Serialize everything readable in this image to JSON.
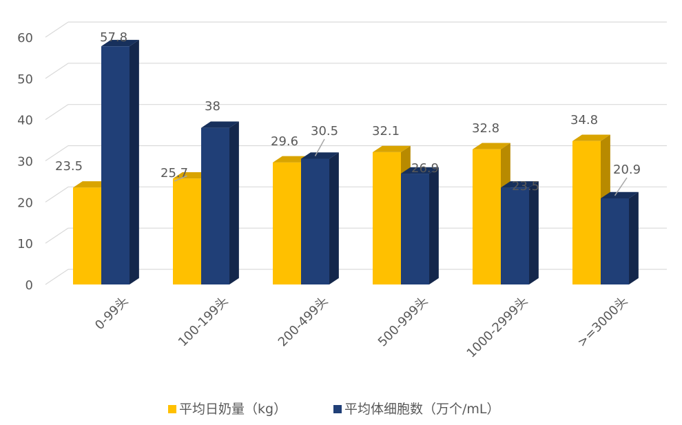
{
  "chart_data": {
    "type": "bar",
    "title": "",
    "xlabel": "",
    "ylabel": "",
    "ylim": [
      0,
      60
    ],
    "yticks": [
      0,
      10,
      20,
      30,
      40,
      50,
      60
    ],
    "categories": [
      "0-99头",
      "100-199头",
      "200-499头",
      "500-999头",
      "1000-2999头",
      ">=3000头"
    ],
    "series": [
      {
        "name": "平均日奶量（kg）",
        "values": [
          23.5,
          25.7,
          29.6,
          32.1,
          32.8,
          34.8
        ],
        "color": "#FFC000",
        "side_color": "#B88A00",
        "top_color": "#D9A400"
      },
      {
        "name": "平均体细胞数（万个/mL）",
        "values": [
          57.8,
          38,
          30.5,
          26.9,
          23.5,
          20.9
        ],
        "color": "#203F77",
        "side_color": "#14274B",
        "top_color": "#17305C"
      }
    ],
    "data_labels": [
      [
        "23.5",
        "25.7",
        "29.6",
        "32.1",
        "32.8",
        "34.8"
      ],
      [
        "57.8",
        "38",
        "30.5",
        "26.9",
        "23.5",
        "20.9"
      ]
    ],
    "legend_position": "bottom",
    "grid": true,
    "grid_color": "#D9D9D9",
    "style": "3d-clustered-column"
  }
}
